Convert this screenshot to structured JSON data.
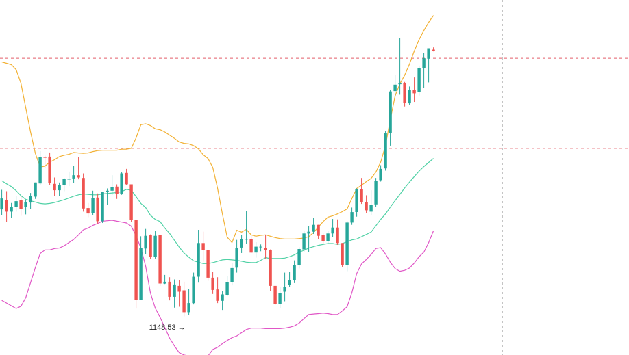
{
  "chart_data": {
    "type": "candlestick",
    "title": "",
    "xlabel": "",
    "ylabel": "",
    "ylim": [
      1140,
      1218
    ],
    "colors": {
      "bull": "#26a69a",
      "bear": "#ef5350",
      "upper_band": "#f2b134",
      "middle_band": "#4fd1a5",
      "lower_band": "#e056c6",
      "dashed_lines": "#e35d6a",
      "crosshair": "#888888"
    },
    "candles": [
      [
        1172.0,
        1176.3,
        1170.8,
        1174.4
      ],
      [
        1174.0,
        1176.0,
        1169.2,
        1171.5
      ],
      [
        1171.5,
        1173.4,
        1170.1,
        1172.6
      ],
      [
        1172.6,
        1174.9,
        1171.5,
        1173.8
      ],
      [
        1174.0,
        1175.0,
        1170.6,
        1172.1
      ],
      [
        1172.5,
        1174.1,
        1170.9,
        1173.6
      ],
      [
        1173.5,
        1175.6,
        1172.1,
        1174.9
      ],
      [
        1174.8,
        1177.9,
        1174.3,
        1177.9
      ],
      [
        1177.7,
        1184.8,
        1177.4,
        1183.5
      ],
      [
        1183.5,
        1183.8,
        1181.1,
        1183.4
      ],
      [
        1183.6,
        1184.5,
        1177.3,
        1177.8
      ],
      [
        1177.6,
        1179.0,
        1174.9,
        1176.2
      ],
      [
        1176.2,
        1177.9,
        1175.0,
        1177.4
      ],
      [
        1177.4,
        1178.9,
        1176.0,
        1178.7
      ],
      [
        1178.7,
        1180.3,
        1177.1,
        1178.7
      ],
      [
        1178.8,
        1181.5,
        1177.8,
        1179.5
      ],
      [
        1179.5,
        1183.5,
        1178.6,
        1179.0
      ],
      [
        1178.9,
        1179.9,
        1171.5,
        1172.2
      ],
      [
        1172.3,
        1173.4,
        1170.3,
        1171.1
      ],
      [
        1171.2,
        1176.1,
        1170.8,
        1174.5
      ],
      [
        1174.6,
        1175.5,
        1168.9,
        1169.4
      ],
      [
        1169.4,
        1175.9,
        1169.0,
        1175.9
      ],
      [
        1175.9,
        1176.6,
        1173.0,
        1176.1
      ],
      [
        1176.1,
        1179.5,
        1175.2,
        1176.9
      ],
      [
        1177.0,
        1177.5,
        1174.3,
        1175.4
      ],
      [
        1175.4,
        1180.2,
        1175.2,
        1179.9
      ],
      [
        1180.0,
        1180.9,
        1177.4,
        1177.5
      ],
      [
        1177.5,
        1177.5,
        1169.3,
        1169.7
      ],
      [
        1169.7,
        1169.7,
        1150.2,
        1152.1
      ],
      [
        1152.1,
        1166.1,
        1152.1,
        1163.5
      ],
      [
        1163.4,
        1167.7,
        1162.2,
        1166.2
      ],
      [
        1166.3,
        1166.5,
        1161.1,
        1161.5
      ],
      [
        1161.5,
        1167.2,
        1161.2,
        1166.2
      ],
      [
        1166.4,
        1166.4,
        1155.2,
        1155.7
      ],
      [
        1155.7,
        1157.6,
        1155.6,
        1156.1
      ],
      [
        1156.1,
        1157.1,
        1152.0,
        1152.8
      ],
      [
        1152.8,
        1156.6,
        1150.4,
        1155.5
      ],
      [
        1155.2,
        1156.5,
        1150.6,
        1153.9
      ],
      [
        1154.2,
        1156.1,
        1148.5,
        1149.4
      ],
      [
        1149.4,
        1154.5,
        1148.8,
        1151.4
      ],
      [
        1151.4,
        1158.1,
        1151.1,
        1157.2
      ],
      [
        1157.2,
        1167.5,
        1155.9,
        1164.6
      ],
      [
        1164.6,
        1167.1,
        1160.5,
        1163.0
      ],
      [
        1163.0,
        1163.0,
        1156.3,
        1157.0
      ],
      [
        1157.0,
        1158.2,
        1153.4,
        1154.3
      ],
      [
        1154.4,
        1157.1,
        1151.4,
        1151.9
      ],
      [
        1151.9,
        1154.1,
        1149.9,
        1153.3
      ],
      [
        1153.2,
        1157.3,
        1152.9,
        1156.0
      ],
      [
        1156.0,
        1160.3,
        1155.3,
        1159.1
      ],
      [
        1159.2,
        1165.3,
        1158.1,
        1163.6
      ],
      [
        1163.6,
        1166.4,
        1162.4,
        1165.5
      ],
      [
        1165.5,
        1171.6,
        1164.5,
        1165.5
      ],
      [
        1165.5,
        1166.1,
        1162.4,
        1162.5
      ],
      [
        1162.5,
        1164.8,
        1161.4,
        1163.8
      ],
      [
        1163.8,
        1164.3,
        1162.8,
        1163.8
      ],
      [
        1163.6,
        1166.3,
        1161.2,
        1163.1
      ],
      [
        1163.0,
        1163.2,
        1154.1,
        1155.2
      ],
      [
        1155.2,
        1155.2,
        1151.0,
        1151.2
      ],
      [
        1151.2,
        1155.0,
        1150.3,
        1153.6
      ],
      [
        1153.9,
        1158.1,
        1151.8,
        1155.0
      ],
      [
        1155.4,
        1158.2,
        1155.0,
        1156.5
      ],
      [
        1156.5,
        1160.8,
        1155.8,
        1159.8
      ],
      [
        1159.8,
        1163.7,
        1159.0,
        1163.3
      ],
      [
        1163.2,
        1167.2,
        1162.6,
        1166.7
      ],
      [
        1166.7,
        1168.3,
        1162.6,
        1167.1
      ],
      [
        1167.1,
        1170.1,
        1166.6,
        1168.6
      ],
      [
        1168.6,
        1168.6,
        1165.4,
        1166.2
      ],
      [
        1166.3,
        1166.7,
        1164.3,
        1165.0
      ],
      [
        1165.0,
        1167.3,
        1164.6,
        1166.7
      ],
      [
        1166.7,
        1169.9,
        1165.9,
        1168.0
      ],
      [
        1168.0,
        1169.8,
        1164.2,
        1164.6
      ],
      [
        1164.6,
        1164.6,
        1159.3,
        1159.7
      ],
      [
        1159.7,
        1169.4,
        1158.4,
        1169.1
      ],
      [
        1169.1,
        1172.4,
        1168.6,
        1171.4
      ],
      [
        1171.4,
        1176.6,
        1170.4,
        1176.5
      ],
      [
        1176.5,
        1178.9,
        1173.2,
        1173.6
      ],
      [
        1173.6,
        1175.1,
        1171.2,
        1171.8
      ],
      [
        1171.5,
        1176.2,
        1170.8,
        1173.0
      ],
      [
        1173.1,
        1178.9,
        1172.6,
        1178.3
      ],
      [
        1178.4,
        1181.7,
        1178.1,
        1180.9
      ],
      [
        1181.0,
        1189.2,
        1180.5,
        1188.7
      ],
      [
        1188.7,
        1198.2,
        1186.0,
        1197.9
      ],
      [
        1198.0,
        1201.6,
        1196.7,
        1199.4
      ],
      [
        1199.5,
        1209.6,
        1197.2,
        1199.8
      ],
      [
        1199.8,
        1200.0,
        1194.6,
        1195.3
      ],
      [
        1195.3,
        1199.0,
        1194.9,
        1198.3
      ],
      [
        1198.3,
        1201.0,
        1195.6,
        1197.5
      ],
      [
        1197.7,
        1203.6,
        1197.0,
        1203.1
      ],
      [
        1203.1,
        1206.4,
        1198.7,
        1205.2
      ],
      [
        1205.1,
        1207.4,
        1199.9,
        1207.4
      ],
      [
        1207.1,
        1207.6,
        1206.7,
        1206.8
      ]
    ],
    "middle_band": [
      1178.3,
      1177.6,
      1177.0,
      1176.1,
      1175.0,
      1174.2,
      1173.9,
      1173.6,
      1173.3,
      1173.2,
      1173.3,
      1173.5,
      1173.8,
      1174.1,
      1174.5,
      1174.9,
      1175.2,
      1175.4,
      1175.3,
      1175.2,
      1175.2,
      1175.4,
      1175.5,
      1175.6,
      1175.7,
      1175.9,
      1176.4,
      1176.2,
      1174.8,
      1173.3,
      1172.4,
      1170.7,
      1169.8,
      1169.3,
      1167.9,
      1166.7,
      1165.2,
      1163.7,
      1162.4,
      1161.5,
      1160.7,
      1160.4,
      1160.1,
      1160.1,
      1160.3,
      1160.6,
      1160.9,
      1161.0,
      1160.9,
      1160.8,
      1160.6,
      1160.4,
      1160.3,
      1160.3,
      1160.8,
      1161.4,
      1161.2,
      1161.2,
      1161.2,
      1161.3,
      1161.6,
      1162.0,
      1162.6,
      1163.0,
      1163.5,
      1163.8,
      1164.1,
      1164.3,
      1164.5,
      1164.5,
      1164.3,
      1164.5,
      1164.9,
      1165.3,
      1165.5,
      1166.0,
      1166.5,
      1167.0,
      1168.4,
      1169.8,
      1171.0,
      1172.5,
      1173.9,
      1175.3,
      1176.7,
      1178.0,
      1179.2,
      1180.4,
      1181.4,
      1182.3,
      1183.2
    ],
    "upper_band": [
      1204.4,
      1204.1,
      1203.8,
      1202.7,
      1199.7,
      1194.3,
      1189.0,
      1184.3,
      1181.3,
      1181.5,
      1182.4,
      1182.9,
      1183.6,
      1183.9,
      1184.1,
      1184.5,
      1184.4,
      1184.3,
      1184.4,
      1184.7,
      1184.9,
      1185.0,
      1185.0,
      1185.0,
      1185.0,
      1185.2,
      1185.2,
      1185.4,
      1187.7,
      1190.6,
      1190.8,
      1190.4,
      1189.7,
      1189.5,
      1189.0,
      1188.3,
      1187.6,
      1186.8,
      1186.5,
      1186.4,
      1186.0,
      1185.3,
      1184.0,
      1183.2,
      1181.2,
      1176.6,
      1171.0,
      1165.9,
      1164.7,
      1167.4,
      1167.0,
      1167.6,
      1166.4,
      1166.1,
      1166.3,
      1166.4,
      1166.1,
      1165.8,
      1165.6,
      1165.5,
      1165.5,
      1165.5,
      1165.6,
      1165.7,
      1166.0,
      1166.9,
      1168.1,
      1169.3,
      1170.3,
      1170.6,
      1171.0,
      1171.5,
      1172.1,
      1174.4,
      1176.6,
      1177.3,
      1178.1,
      1178.8,
      1180.2,
      1182.4,
      1186.0,
      1191.7,
      1196.9,
      1199.6,
      1201.5,
      1203.9,
      1206.8,
      1209.3,
      1211.3,
      1213.1,
      1214.6
    ],
    "lower_band": [
      1152.0,
      1151.4,
      1150.8,
      1150.2,
      1150.7,
      1152.6,
      1155.9,
      1159.2,
      1162.3,
      1163.1,
      1163.1,
      1163.4,
      1163.5,
      1164.0,
      1164.7,
      1165.4,
      1166.4,
      1167.5,
      1167.9,
      1168.5,
      1168.9,
      1169.4,
      1169.5,
      1169.6,
      1169.4,
      1169.2,
      1169.0,
      1168.3,
      1166.2,
      1163.5,
      1159.5,
      1153.6,
      1150.3,
      1148.3,
      1146.0,
      1143.7,
      1142.0,
      1140.5,
      1140.0,
      1139.8,
      1139.6,
      1139.5,
      1139.5,
      1139.8,
      1141.2,
      1141.7,
      1142.5,
      1143.2,
      1143.8,
      1144.2,
      1144.9,
      1145.6,
      1145.9,
      1145.9,
      1145.9,
      1145.8,
      1145.8,
      1145.8,
      1145.8,
      1145.9,
      1146.1,
      1146.4,
      1147.0,
      1148.0,
      1148.9,
      1149.0,
      1149.1,
      1149.2,
      1149.1,
      1148.9,
      1148.9,
      1149.7,
      1150.6,
      1153.7,
      1157.9,
      1160.0,
      1161.0,
      1162.1,
      1163.4,
      1163.6,
      1162.2,
      1160.4,
      1159.0,
      1158.4,
      1158.6,
      1159.1,
      1160.2,
      1161.6,
      1162.6,
      1164.7,
      1167.3
    ],
    "horizontal_levels": [
      1205.2,
      1185.4
    ],
    "low_marker": {
      "label": "1148.53",
      "value": 1148.53,
      "candle_index": 38
    }
  }
}
